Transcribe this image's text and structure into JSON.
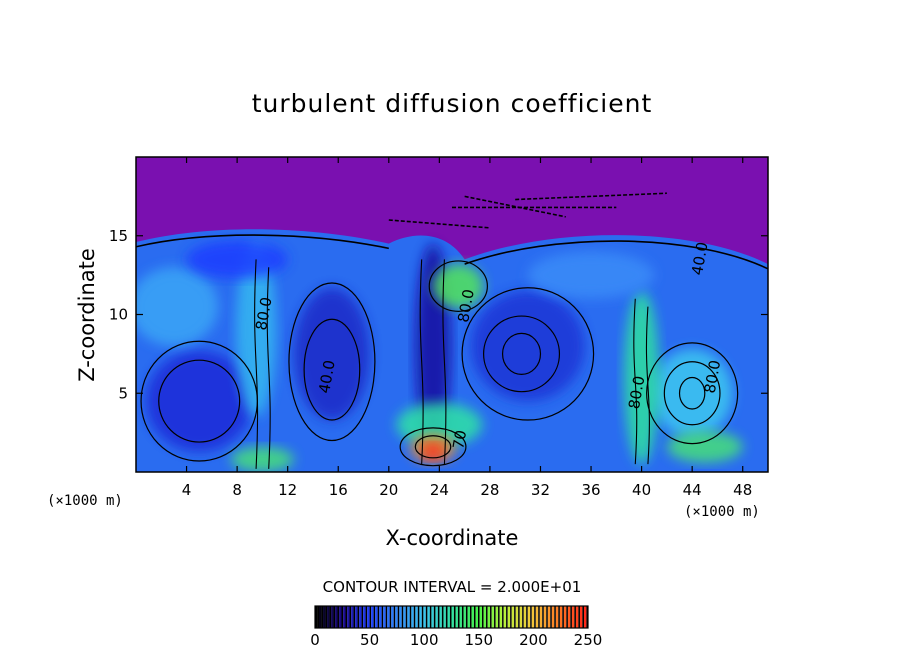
{
  "chart_data": {
    "type": "heatmap",
    "title": "turbulent diffusion coefficient",
    "xlabel": "X-coordinate",
    "ylabel": "Z-coordinate",
    "x_unit_left": "(×1000 m)",
    "x_unit_right": "(×1000 m)",
    "xlim": [
      0,
      50
    ],
    "ylim": [
      0,
      20
    ],
    "x_ticks": [
      4,
      8,
      12,
      16,
      20,
      24,
      28,
      32,
      36,
      40,
      44,
      48
    ],
    "y_ticks": [
      5,
      10,
      15
    ],
    "contour_interval_text": "CONTOUR INTERVAL = 2.000E+01",
    "colorbar": {
      "min": 0,
      "max": 250,
      "ticks": [
        0,
        50,
        100,
        150,
        200,
        250
      ],
      "colors": [
        "#000000",
        "#1a0a8f",
        "#1a3cff",
        "#2a86ff",
        "#33c4f0",
        "#2ee3a5",
        "#46f24a",
        "#b8f23a",
        "#f2c93a",
        "#ff7a22",
        "#ff2a1a"
      ]
    },
    "contour_labels": [
      {
        "text": "80.0",
        "x": 10.5,
        "z": 10.0
      },
      {
        "text": "40.0",
        "x": 15.5,
        "z": 6.0
      },
      {
        "text": "80.0",
        "x": 26.5,
        "z": 10.5
      },
      {
        "text": "80.0",
        "x": 40.0,
        "z": 5.0
      },
      {
        "text": "80.0",
        "x": 46.0,
        "z": 6.0
      },
      {
        "text": "70",
        "x": 26.0,
        "z": 2.0
      },
      {
        "text": "40.0",
        "x": 45.0,
        "z": 13.5
      }
    ],
    "features": {
      "top_region_value": 0,
      "left_eddy_center": {
        "x": 5,
        "z": 4.5
      },
      "center_column": {
        "x": 23.5,
        "z": 8.0
      },
      "hotspot": {
        "x": 23.5,
        "z": 1.5,
        "value": 230
      },
      "right_eddy_center": {
        "x": 44,
        "z": 5
      }
    }
  }
}
